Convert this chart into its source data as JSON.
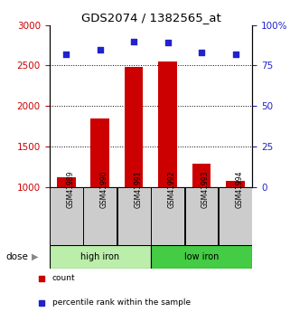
{
  "title": "GDS2074 / 1382565_at",
  "samples": [
    "GSM41989",
    "GSM41990",
    "GSM41991",
    "GSM41992",
    "GSM41993",
    "GSM41994"
  ],
  "counts": [
    1120,
    1850,
    2480,
    2550,
    1290,
    1080
  ],
  "percentile_ranks": [
    82,
    85,
    90,
    89,
    83,
    82
  ],
  "ylim_left": [
    1000,
    3000
  ],
  "ylim_right": [
    0,
    100
  ],
  "yticks_left": [
    1000,
    1500,
    2000,
    2500,
    3000
  ],
  "yticks_right": [
    0,
    25,
    50,
    75,
    100
  ],
  "bar_color": "#cc0000",
  "dot_color": "#2222cc",
  "bar_width": 0.55,
  "groups": [
    {
      "label": "high iron",
      "indices": [
        0,
        1,
        2
      ],
      "color": "#bbeeaa"
    },
    {
      "label": "low iron",
      "indices": [
        3,
        4,
        5
      ],
      "color": "#44cc44"
    }
  ],
  "left_axis_color": "#cc0000",
  "right_axis_color": "#2222cc",
  "sample_box_color": "#cccccc",
  "legend_items": [
    "count",
    "percentile rank within the sample"
  ],
  "legend_colors": [
    "#cc0000",
    "#2222cc"
  ]
}
